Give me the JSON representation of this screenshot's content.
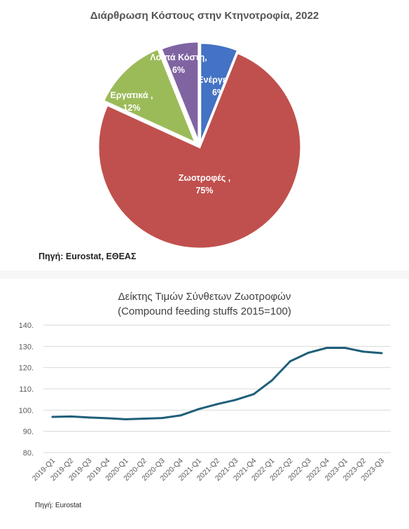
{
  "pie": {
    "title": "Διάρθρωση Κόστους στην Κτηνοτροφία, 2022",
    "source": "Πηγή: Eurostat, ΕΘΕΑΣ"
  },
  "line": {
    "title_line1": "Δείκτης Τιμών Σύνθετων Ζωοτροφών",
    "title_line2": "(Compound feeding stuffs 2015=100)",
    "source": "Πηγή: Eurostat"
  },
  "colors": {
    "energy": "#4472c4",
    "feed": "#c0504d",
    "labour": "#9bbb59",
    "other": "#8064a2",
    "line": "#1f5f7a",
    "grid": "#d9d9d9"
  },
  "chart_data": [
    {
      "type": "pie",
      "title": "Διάρθρωση Κόστους στην Κτηνοτροφία, 2022",
      "slices": [
        {
          "label": "Ενέργεια ,",
          "value": 6,
          "value_label": "6%",
          "color": "#4472c4"
        },
        {
          "label": "Ζωοτροφές ,",
          "value": 75,
          "value_label": "75%",
          "color": "#c0504d"
        },
        {
          "label": "Εργατικά ,",
          "value": 12,
          "value_label": "12%",
          "color": "#9bbb59"
        },
        {
          "label": "Λοιπά Κόστη,",
          "value": 6,
          "value_label": "6%",
          "color": "#8064a2"
        }
      ]
    },
    {
      "type": "line",
      "title": "Δείκτης Τιμών Σύνθετων Ζωοτροφών",
      "subtitle": "(Compound feeding stuffs 2015=100)",
      "x": [
        "2019-Q1",
        "2019-Q2",
        "2019-Q3",
        "2019-Q4",
        "2020-Q1",
        "2020-Q2",
        "2020-Q3",
        "2020-Q4",
        "2021-Q1",
        "2021-Q2",
        "2021-Q3",
        "2021-Q4",
        "2022-Q1",
        "2022-Q2",
        "2022-Q3",
        "2022-Q4",
        "2023-Q1",
        "2023-Q2",
        "2023-Q3"
      ],
      "series": [
        {
          "values": [
            96.8,
            97.0,
            96.5,
            96.2,
            95.7,
            96.0,
            96.3,
            97.5,
            100.5,
            102.8,
            104.8,
            107.5,
            114.0,
            123.0,
            127.0,
            129.3,
            129.3,
            127.5,
            126.8
          ]
        }
      ],
      "yticks": [
        "140.",
        "130.",
        "120.",
        "110.",
        "100.",
        "90.",
        "80."
      ],
      "ylim": [
        80,
        140
      ],
      "grid": true
    }
  ]
}
